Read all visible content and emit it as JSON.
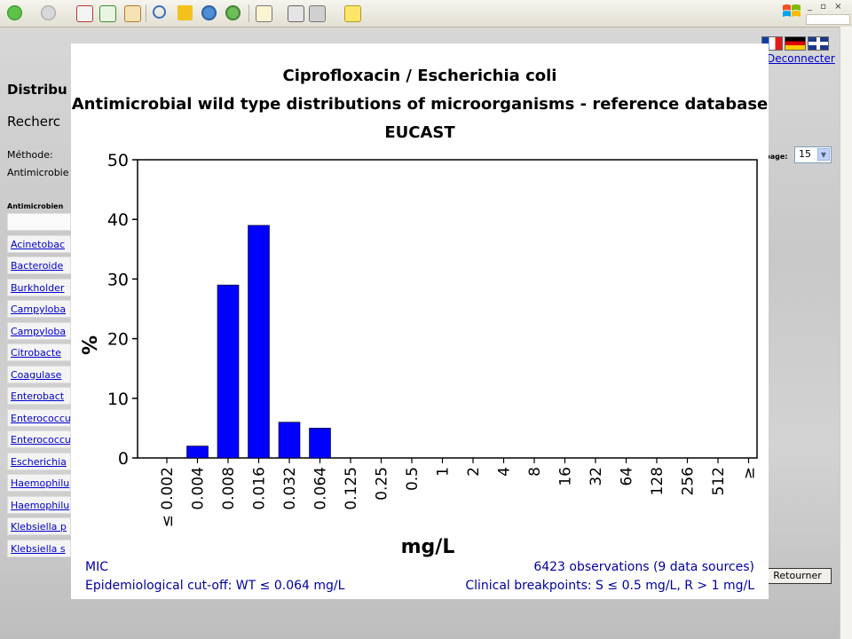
{
  "background": {
    "title": "Distribu",
    "subtitle": "Recherc",
    "method_label": "Méthode:",
    "antimicrobial_label": "Antimicrobie",
    "column_header": "Antimicrobien",
    "organisms": [
      "Acinetobac",
      "Bacteroide",
      "Burkholder",
      "Campyloba",
      "Campyloba",
      "Citrobacte",
      "Coagulase",
      "Enterobact",
      "Enterococcu",
      "Enterococcu",
      "Escherichia",
      "Haemophilu",
      "Haemophilu",
      "Klebsiella p",
      "Klebsiella s"
    ],
    "logout_link": "Deconnecter",
    "per_page_label": "page:",
    "per_page_value": "15",
    "return_button": "Retourner"
  },
  "chart_data": {
    "type": "bar",
    "title": "Ciprofloxacin / Escherichia coli",
    "subtitle": "Antimicrobial wild type distributions of microorganisms - reference database",
    "subtitle2": "EUCAST",
    "xlabel": "mg/L",
    "ylabel": "%",
    "ylim": [
      0,
      50
    ],
    "yticks": [
      0,
      10,
      20,
      30,
      40,
      50
    ],
    "categories": [
      "≤ 0.002",
      "0.004",
      "0.008",
      "0.016",
      "0.032",
      "0.064",
      "0.125",
      "0.25",
      "0.5",
      "1",
      "2",
      "4",
      "8",
      "16",
      "32",
      "64",
      "128",
      "256",
      "512",
      "≥"
    ],
    "values": [
      0,
      2,
      29,
      39,
      6,
      5,
      0,
      0,
      0,
      0,
      0,
      0,
      0,
      0,
      0,
      0,
      0,
      0,
      0,
      0
    ],
    "bar_color": "#0000ff",
    "grid": false,
    "footer_left_1": "MIC",
    "footer_left_2": "Epidemiological cut-off: WT ≤ 0.064 mg/L",
    "footer_right_1": "6423 observations (9 data sources)",
    "footer_right_2": "Clinical breakpoints: S ≤ 0.5 mg/L,  R > 1 mg/L"
  }
}
